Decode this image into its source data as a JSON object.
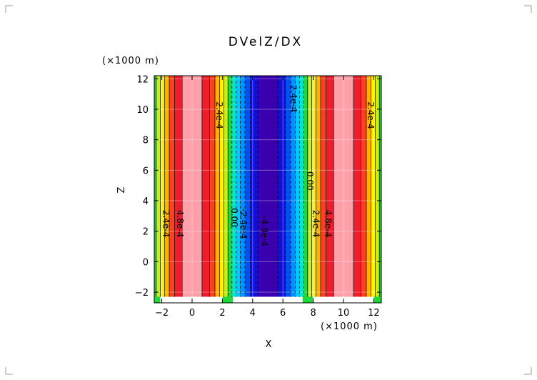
{
  "chart_data": {
    "type": "heatmap",
    "title": "DVelZ/DX",
    "xlabel": "X",
    "ylabel": "Z",
    "x_unit": "(×1000 m)",
    "y_unit": "(×1000 m)",
    "xlim": [
      -2.5,
      12.5
    ],
    "ylim": [
      -2.7,
      12.2
    ],
    "x_ticks": [
      -2,
      0,
      2,
      4,
      6,
      8,
      10,
      12
    ],
    "y_ticks": [
      -2,
      0,
      2,
      4,
      6,
      8,
      10,
      12
    ],
    "x_tick_labels": [
      "−2",
      "0",
      "2",
      "4",
      "6",
      "8",
      "10",
      "12"
    ],
    "y_tick_labels": [
      "−2",
      "0",
      "2",
      "4",
      "6",
      "8",
      "10",
      "12"
    ],
    "bottom_boundary_z": -2.3,
    "field": {
      "description_values": "column profile vs x; value ~ A*cos(2*pi*(x)/10)",
      "peak_x": [
        0,
        10
      ],
      "trough_x": 5,
      "amplitude": 0.0006
    },
    "bands": [
      {
        "value": -0.0006,
        "color": "#3a00b0"
      },
      {
        "value": -0.0005,
        "color": "#1010d8"
      },
      {
        "value": -0.0004,
        "color": "#0050f0"
      },
      {
        "value": -0.0003,
        "color": "#0090ff"
      },
      {
        "value": -0.0002,
        "color": "#00c8ff"
      },
      {
        "value": -0.0001,
        "color": "#00e8c8"
      },
      {
        "value": 0.0,
        "color": "#20d838"
      },
      {
        "value": 0.0001,
        "color": "#c8ee20"
      },
      {
        "value": 0.0002,
        "color": "#ffee00"
      },
      {
        "value": 0.0003,
        "color": "#ffb000"
      },
      {
        "value": 0.0004,
        "color": "#ff4020"
      },
      {
        "value": 0.0005,
        "color": "#ee1c2c"
      },
      {
        "value": 0.0006,
        "color": "#ffa0a8"
      }
    ],
    "contour_labels": [
      {
        "text": "2.4e-4",
        "x": 1.6,
        "z": 9.6
      },
      {
        "text": "2.4e-4",
        "x": 6.5,
        "z": 10.7
      },
      {
        "text": "2.4e-4",
        "x": 11.6,
        "z": 9.6
      },
      {
        "text": "0.00",
        "x": 7.6,
        "z": 5.3
      },
      {
        "text": "0.00",
        "x": 2.6,
        "z": 2.9
      },
      {
        "text": "-2.4e-4",
        "x": 3.2,
        "z": 2.5
      },
      {
        "text": "4.8e-4",
        "x": -1.0,
        "z": 2.5
      },
      {
        "text": "2.4e-4",
        "x": -1.9,
        "z": 2.5
      },
      {
        "text": "4.8e-4",
        "x": 8.8,
        "z": 2.5
      },
      {
        "text": "2.4e-4",
        "x": 8.0,
        "z": 2.5
      },
      {
        "text": "-4.8e-4",
        "x": 4.6,
        "z": 2.0
      }
    ]
  }
}
